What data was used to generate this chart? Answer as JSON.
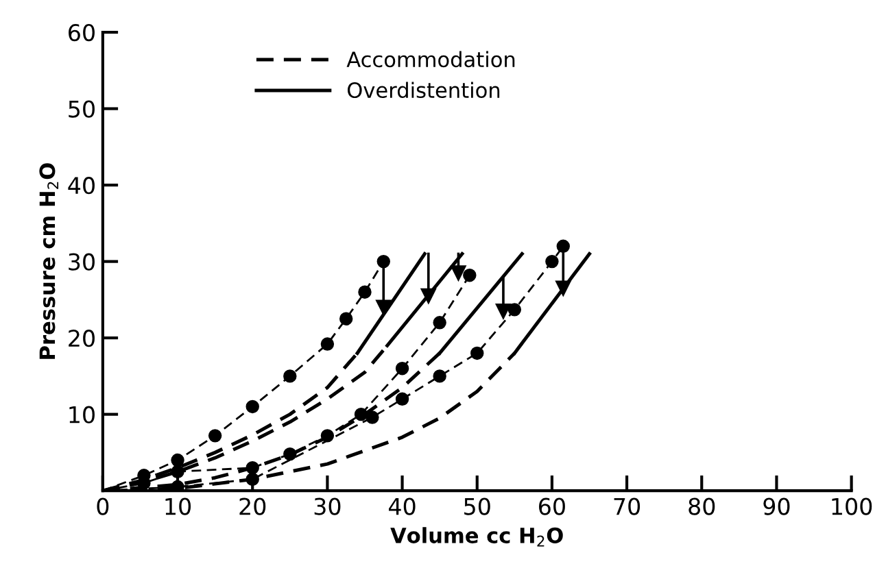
{
  "chart_data": {
    "type": "line",
    "xlabel": "Volume cc H$_{2}$O",
    "ylabel": "Pressure cm H$_{2}$O",
    "xlim": [
      0,
      100
    ],
    "ylim": [
      0,
      60
    ],
    "xticks": [
      0,
      10,
      20,
      30,
      40,
      50,
      60,
      70,
      80,
      90,
      100
    ],
    "yticks": [
      10,
      20,
      30,
      40,
      50,
      60
    ],
    "legend": "top left",
    "grid": false,
    "color": "#000000",
    "series": [
      {
        "name": "Accommodation",
        "line_style": "dashed",
        "marker": "none",
        "x": [
          0,
          5,
          10,
          15,
          20,
          25,
          30,
          34
        ],
        "values": [
          0,
          1.3,
          3,
          5,
          7.3,
          10,
          13.5,
          18
        ]
      },
      {
        "name": "Overdistention",
        "line_style": "solid",
        "marker": "none",
        "x": [
          34,
          43
        ],
        "values": [
          18,
          31
        ]
      },
      {
        "line_style": "dashed",
        "marker": "none",
        "x": [
          0,
          5,
          10,
          15,
          20,
          25,
          30,
          35,
          38
        ],
        "values": [
          0,
          1,
          2.5,
          4.3,
          6.5,
          9,
          12,
          15.5,
          19
        ]
      },
      {
        "line_style": "solid",
        "marker": "none",
        "x": [
          38,
          48
        ],
        "values": [
          19,
          31
        ]
      },
      {
        "line_style": "dashed",
        "marker": "none",
        "x": [
          0,
          10,
          15,
          20,
          25,
          30,
          35,
          40,
          45
        ],
        "values": [
          0,
          0.8,
          1.7,
          3,
          4.7,
          7,
          10,
          13.5,
          18
        ]
      },
      {
        "line_style": "solid",
        "marker": "none",
        "x": [
          45,
          56
        ],
        "values": [
          18,
          31
        ]
      },
      {
        "line_style": "dashed",
        "marker": "none",
        "x": [
          0,
          10,
          20,
          30,
          40,
          45,
          50,
          55
        ],
        "values": [
          0,
          0.3,
          1.5,
          3.5,
          7,
          9.5,
          13,
          18
        ]
      },
      {
        "line_style": "solid",
        "marker": "none",
        "x": [
          55,
          65
        ],
        "values": [
          18,
          31
        ]
      },
      {
        "line_style": "dashed",
        "marker": "circle",
        "x": [
          0,
          5.5,
          10,
          15,
          20,
          25,
          30,
          32.5,
          35,
          37.5
        ],
        "values": [
          0,
          2,
          4,
          7.2,
          11,
          15,
          19.2,
          22.5,
          26,
          30
        ]
      },
      {
        "line_style": "dashed",
        "marker": "circle",
        "x": [
          0,
          5.5,
          10,
          20,
          25,
          30,
          34.5,
          40,
          45,
          49
        ],
        "values": [
          0,
          1,
          2.5,
          3,
          4.8,
          7.2,
          10,
          16,
          22,
          28.2
        ]
      },
      {
        "line_style": "dashed",
        "marker": "circle",
        "x": [
          0,
          10,
          20,
          36,
          40,
          45,
          50,
          55,
          60,
          61.5
        ],
        "values": [
          0,
          0.5,
          1.5,
          9.6,
          12,
          15,
          18,
          23.7,
          30,
          32
        ]
      },
      {
        "line_style": "solid",
        "marker": "triangle",
        "x": [
          37.5,
          37.5
        ],
        "values": [
          30,
          24
        ]
      },
      {
        "line_style": "solid",
        "marker": "triangle",
        "x": [
          43.5,
          43.5
        ],
        "values": [
          31,
          25.5
        ]
      },
      {
        "line_style": "solid",
        "marker": "triangle",
        "x": [
          47.5,
          47.5
        ],
        "values": [
          31,
          28.5
        ]
      },
      {
        "line_style": "solid",
        "marker": "triangle",
        "x": [
          53.5,
          53.5
        ],
        "values": [
          28,
          23.5
        ]
      },
      {
        "line_style": "solid",
        "marker": "triangle",
        "x": [
          61.5,
          61.5
        ],
        "values": [
          32,
          26.5
        ]
      }
    ]
  }
}
